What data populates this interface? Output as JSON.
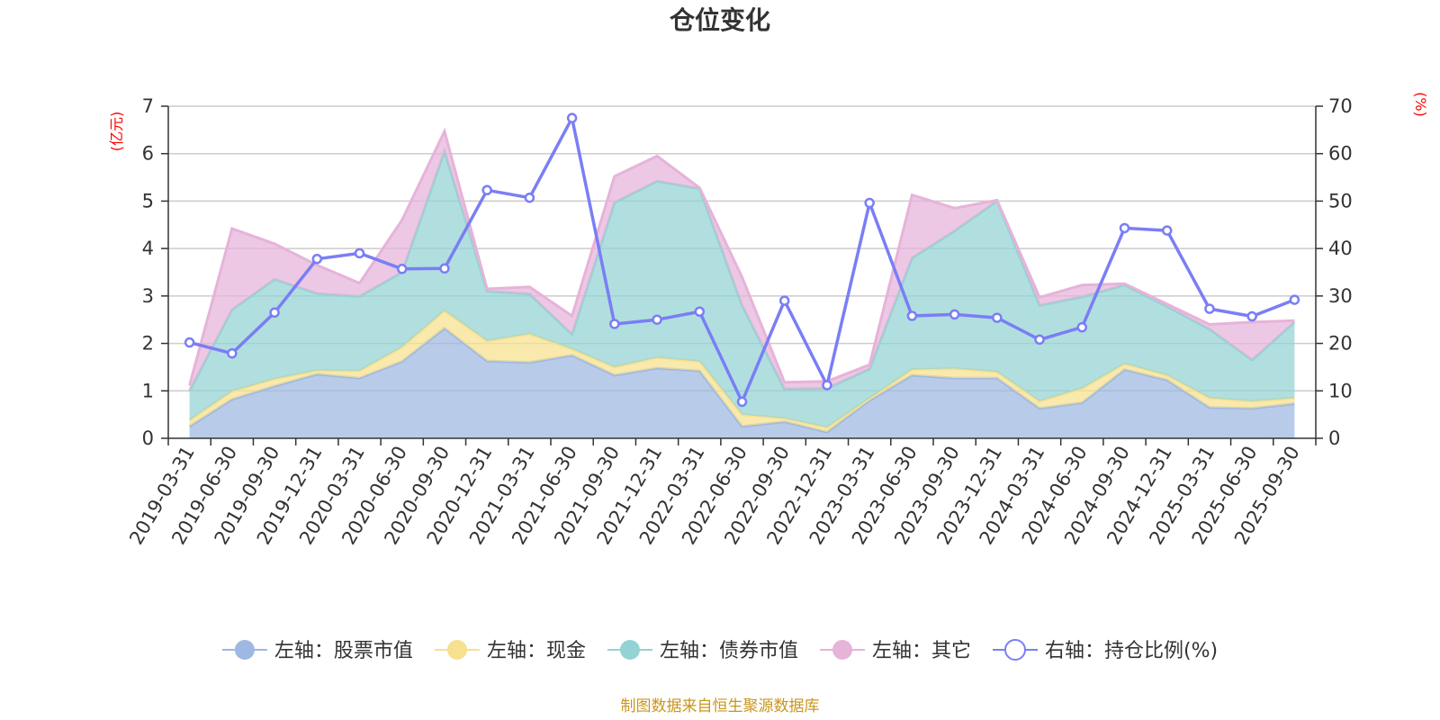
{
  "chart_data": {
    "type": "area",
    "title": "仓位变化",
    "left_axis_unit": "(亿元)",
    "right_axis_unit": "(%)",
    "left_ylim": [
      0,
      7
    ],
    "left_yticks": [
      0,
      1,
      2,
      3,
      4,
      5,
      6,
      7
    ],
    "right_ylim": [
      0,
      70
    ],
    "right_yticks": [
      0,
      10,
      20,
      30,
      40,
      50,
      60,
      70
    ],
    "categories": [
      "2019-03-31",
      "2019-06-30",
      "2019-09-30",
      "2019-12-31",
      "2020-03-31",
      "2020-06-30",
      "2020-09-30",
      "2020-12-31",
      "2021-03-31",
      "2021-06-30",
      "2021-09-30",
      "2021-12-31",
      "2022-03-31",
      "2022-06-30",
      "2022-09-30",
      "2022-12-31",
      "2023-03-31",
      "2023-06-30",
      "2023-09-30",
      "2023-12-31",
      "2024-03-31",
      "2024-06-30",
      "2024-09-30",
      "2024-12-31",
      "2025-03-31",
      "2025-06-30",
      "2025-09-30"
    ],
    "series": [
      {
        "name": "左轴：股票市值",
        "axis": "left",
        "kind": "stacked-area",
        "color": "#9db8e2",
        "values": [
          0.25,
          0.82,
          1.1,
          1.35,
          1.27,
          1.62,
          2.32,
          1.63,
          1.6,
          1.75,
          1.33,
          1.48,
          1.42,
          0.25,
          0.35,
          0.13,
          0.8,
          1.33,
          1.27,
          1.27,
          0.63,
          0.75,
          1.45,
          1.23,
          0.65,
          0.63,
          0.73
        ]
      },
      {
        "name": "左轴：现金",
        "axis": "left",
        "kind": "stacked-area",
        "color": "#f7e08e",
        "values": [
          0.13,
          0.17,
          0.15,
          0.08,
          0.15,
          0.3,
          0.37,
          0.42,
          0.6,
          0.13,
          0.17,
          0.22,
          0.2,
          0.25,
          0.07,
          0.1,
          0.04,
          0.12,
          0.2,
          0.13,
          0.15,
          0.3,
          0.12,
          0.1,
          0.2,
          0.15,
          0.12
        ]
      },
      {
        "name": "左轴：债券市值",
        "axis": "left",
        "kind": "stacked-area",
        "color": "#93d3d3",
        "values": [
          0.62,
          1.72,
          2.1,
          1.62,
          1.57,
          1.58,
          3.36,
          1.05,
          0.84,
          0.31,
          3.47,
          3.72,
          3.64,
          2.3,
          0.62,
          0.82,
          0.62,
          2.35,
          2.9,
          3.6,
          2.02,
          1.93,
          1.66,
          1.45,
          1.45,
          0.87,
          1.6
        ]
      },
      {
        "name": "左轴：其它",
        "axis": "left",
        "kind": "stacked-area",
        "color": "#e6b3d9",
        "values": [
          0.12,
          1.71,
          0.75,
          0.6,
          0.28,
          1.1,
          0.42,
          0.05,
          0.15,
          0.39,
          0.55,
          0.53,
          0.02,
          0.6,
          0.14,
          0.15,
          0.09,
          1.33,
          0.48,
          0.02,
          0.17,
          0.25,
          0.03,
          0.05,
          0.1,
          0.8,
          0.03
        ]
      },
      {
        "name": "右轴：持仓比例(%)",
        "axis": "right",
        "kind": "line",
        "color": "#7a7ef5",
        "values": [
          20.2,
          17.9,
          26.5,
          37.8,
          39.0,
          35.7,
          35.8,
          52.3,
          50.7,
          67.5,
          24.1,
          25.0,
          26.7,
          7.7,
          29.0,
          11.2,
          49.6,
          25.8,
          26.1,
          25.4,
          20.8,
          23.4,
          44.3,
          43.8,
          27.3,
          25.7,
          29.2
        ]
      }
    ]
  },
  "legend": [
    {
      "label": "左轴：股票市值",
      "kind": "area"
    },
    {
      "label": "左轴：现金",
      "kind": "area"
    },
    {
      "label": "左轴：债券市值",
      "kind": "area"
    },
    {
      "label": "左轴：其它",
      "kind": "area"
    },
    {
      "label": "右轴：持仓比例(%)",
      "kind": "line"
    }
  ],
  "source_note": "制图数据来自恒生聚源数据库"
}
